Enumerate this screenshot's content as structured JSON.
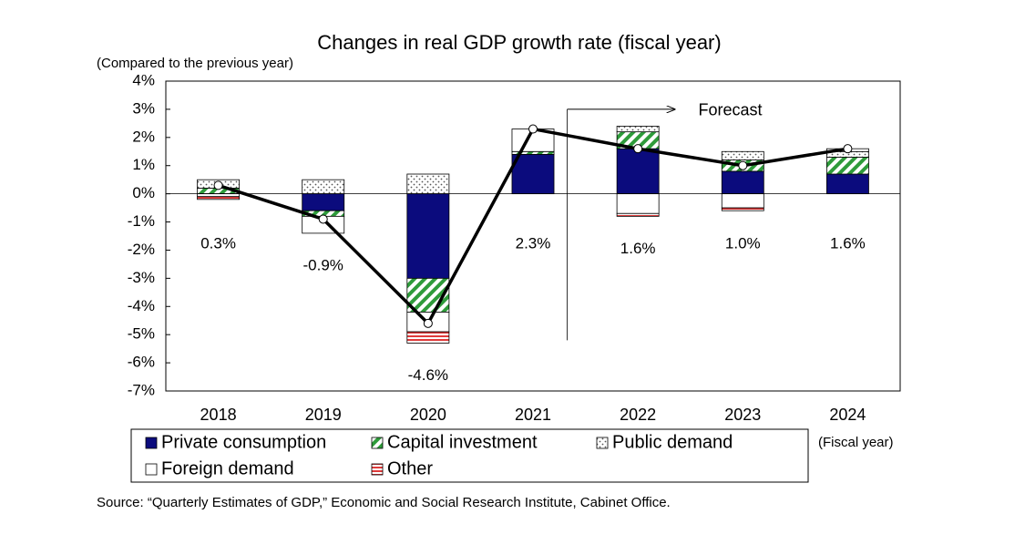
{
  "chart_data": {
    "type": "stacked-bar-line",
    "title": "Changes in real GDP growth rate (fiscal year)",
    "y_label": "(Compared to the previous year)",
    "x_label": "(Fiscal year)",
    "source": "Source: “Quarterly Estimates of GDP,” Economic and Social Research Institute, Cabinet Office.",
    "annotation": "Forecast",
    "forecast_start": "2022",
    "categories": [
      "2018",
      "2019",
      "2020",
      "2021",
      "2022",
      "2023",
      "2024"
    ],
    "series": [
      {
        "name": "Private consumption",
        "color": "#0b0b7d",
        "pattern": "solid",
        "values": [
          0.0,
          -0.6,
          -3.0,
          1.4,
          1.6,
          0.8,
          0.7
        ]
      },
      {
        "name": "Capital investment",
        "color": "#2e9b3a",
        "pattern": "hatch",
        "values": [
          0.2,
          -0.2,
          -1.2,
          0.1,
          0.6,
          0.4,
          0.6
        ]
      },
      {
        "name": "Public demand",
        "color": "#555555",
        "pattern": "dots",
        "values": [
          0.3,
          0.5,
          0.7,
          0.0,
          0.2,
          0.3,
          0.2
        ]
      },
      {
        "name": "Foreign demand",
        "color": "#ffffff",
        "pattern": "none",
        "values": [
          -0.1,
          -0.6,
          -0.7,
          0.8,
          -0.7,
          -0.5,
          0.1
        ]
      },
      {
        "name": "Other",
        "color": "#e03a3a",
        "pattern": "stripes",
        "values": [
          -0.1,
          0.0,
          -0.4,
          0.0,
          -0.1,
          -0.1,
          0.0
        ]
      }
    ],
    "total": {
      "color": "#000000",
      "values": [
        0.3,
        -0.9,
        -4.6,
        2.3,
        1.6,
        1.0,
        1.6
      ],
      "value_labels": [
        "0.3%",
        "-0.9%",
        "-4.6%",
        "2.3%",
        "1.6%",
        "1.0%",
        "1.6%"
      ]
    },
    "ylim": [
      -7,
      4
    ],
    "yticks": [
      {
        "value": 4,
        "label": "4%"
      },
      {
        "value": 3,
        "label": "3%"
      },
      {
        "value": 2,
        "label": "2%"
      },
      {
        "value": 1,
        "label": "1%"
      },
      {
        "value": 0,
        "label": "0%"
      },
      {
        "value": -1,
        "label": "-1%"
      },
      {
        "value": -2,
        "label": "-2%"
      },
      {
        "value": -3,
        "label": "-3%"
      },
      {
        "value": -4,
        "label": "-4%"
      },
      {
        "value": -5,
        "label": "-5%"
      },
      {
        "value": -6,
        "label": "-6%"
      },
      {
        "value": -7,
        "label": "-7%"
      }
    ],
    "grid": false
  }
}
